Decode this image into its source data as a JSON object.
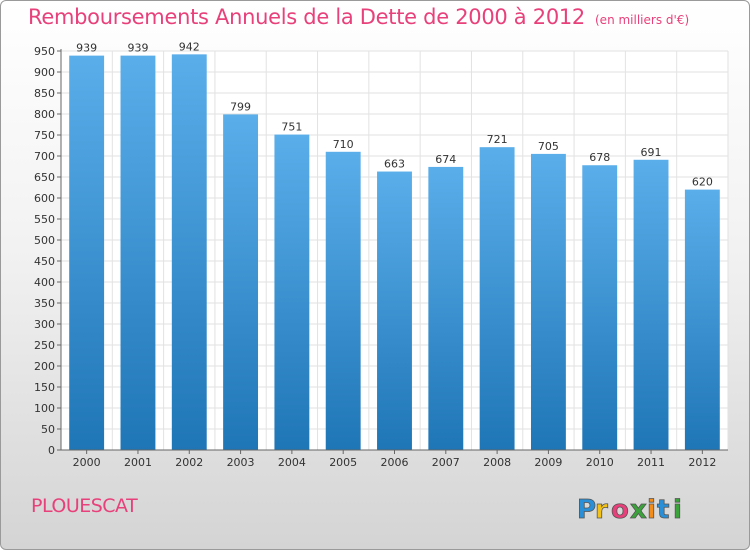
{
  "title": "Remboursements Annuels de la Dette de 2000 à 2012",
  "subtitle": "(en milliers d'€)",
  "commune": "PLOUESCAT",
  "brand": "Proxiti",
  "colors": {
    "accent": "#e8407a",
    "bar_top": "#5aaeea",
    "bar_bottom": "#1f76b6"
  },
  "chart_data": {
    "type": "bar",
    "title": "Remboursements Annuels de la Dette de 2000 à 2012",
    "subtitle": "(en milliers d'€)",
    "xlabel": "",
    "ylabel": "",
    "categories": [
      "2000",
      "2001",
      "2002",
      "2003",
      "2004",
      "2005",
      "2006",
      "2007",
      "2008",
      "2009",
      "2010",
      "2011",
      "2012"
    ],
    "values": [
      939,
      939,
      942,
      799,
      751,
      710,
      663,
      674,
      721,
      705,
      678,
      691,
      620
    ],
    "ylim": [
      0,
      950
    ],
    "yticks": [
      0,
      50,
      100,
      150,
      200,
      250,
      300,
      350,
      400,
      450,
      500,
      550,
      600,
      650,
      700,
      750,
      800,
      850,
      900,
      950
    ],
    "grid": true,
    "legend": "none",
    "data_labels": true
  }
}
